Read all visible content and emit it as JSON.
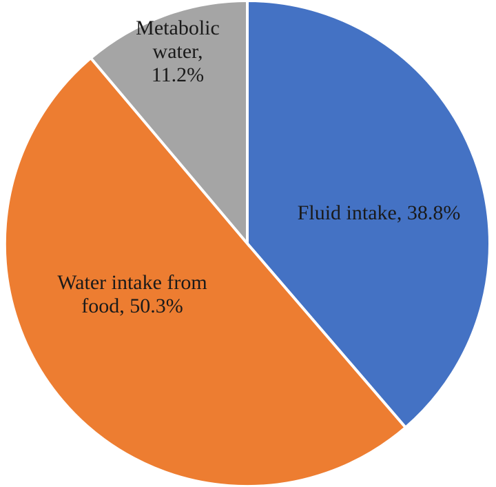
{
  "chart_data": {
    "type": "pie",
    "title": "",
    "legend": "none",
    "start_angle_deg": 0,
    "direction": "clockwise",
    "slices": [
      {
        "label": "Fluid intake",
        "value": 38.8,
        "color": "#4472c4",
        "label_lines": [
          "Fluid intake, 38.8%"
        ]
      },
      {
        "label": "Water intake from food",
        "value": 50.3,
        "color": "#ed7d31",
        "label_lines": [
          "Water intake from",
          "food, 50.3%"
        ]
      },
      {
        "label": "Metabolic water",
        "value": 11.2,
        "color": "#a5a5a5",
        "label_lines": [
          "Metabolic",
          "water,",
          "11.2%"
        ]
      }
    ]
  }
}
